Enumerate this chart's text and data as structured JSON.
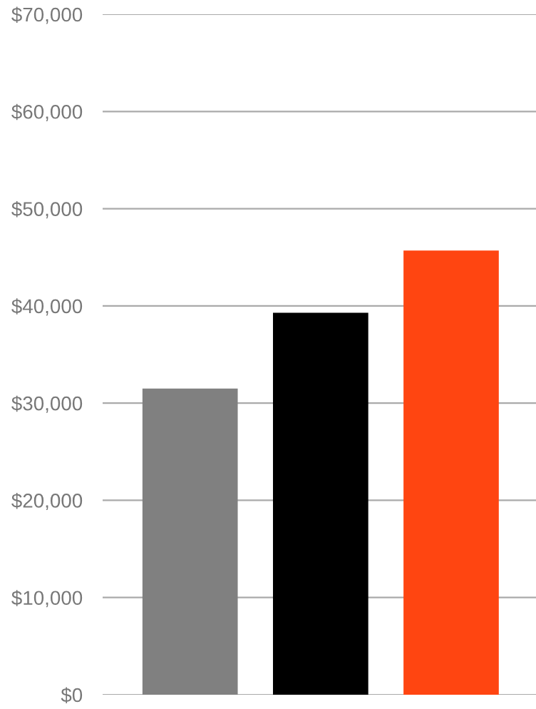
{
  "chart_data": {
    "type": "bar",
    "categories": [
      null,
      null,
      null
    ],
    "values": [
      31500,
      39300,
      45700
    ],
    "colors": [
      "#808080",
      "#000000",
      "#ff4511"
    ],
    "ylim": [
      0,
      70000
    ],
    "yticks": [
      {
        "value": 0,
        "label": "$0"
      },
      {
        "value": 10000,
        "label": "$10,000"
      },
      {
        "value": 20000,
        "label": "$20,000"
      },
      {
        "value": 30000,
        "label": "$30,000"
      },
      {
        "value": 40000,
        "label": "$40,000"
      },
      {
        "value": 50000,
        "label": "$50,000"
      },
      {
        "value": 60000,
        "label": "$60,000"
      },
      {
        "value": 70000,
        "label": "$70,000"
      }
    ],
    "grid": "y"
  }
}
